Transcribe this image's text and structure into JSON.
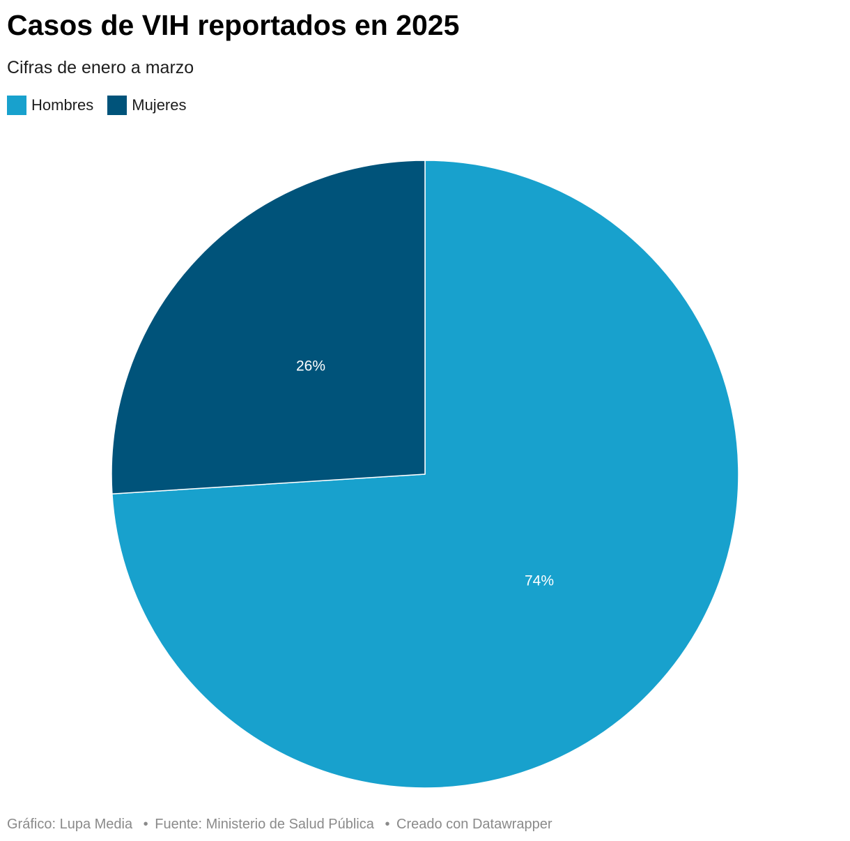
{
  "header": {
    "title": "Casos de VIH reportados en 2025",
    "subtitle": "Cifras de enero a marzo"
  },
  "colors": {
    "hombres": "#18a1cd",
    "mujeres": "#00537a"
  },
  "chart_data": {
    "type": "pie",
    "title": "Casos de VIH reportados en 2025",
    "subtitle": "Cifras de enero a marzo",
    "legend_position": "top-left",
    "slices": [
      {
        "name": "Hombres",
        "value": 74,
        "label": "74%",
        "color": "#18a1cd"
      },
      {
        "name": "Mujeres",
        "value": 26,
        "label": "26%",
        "color": "#00537a"
      }
    ]
  },
  "footer": {
    "credit": "Gráfico: Lupa Media",
    "source": "Fuente: Ministerio de Salud Pública",
    "tool": "Creado con Datawrapper",
    "separator": "•"
  }
}
